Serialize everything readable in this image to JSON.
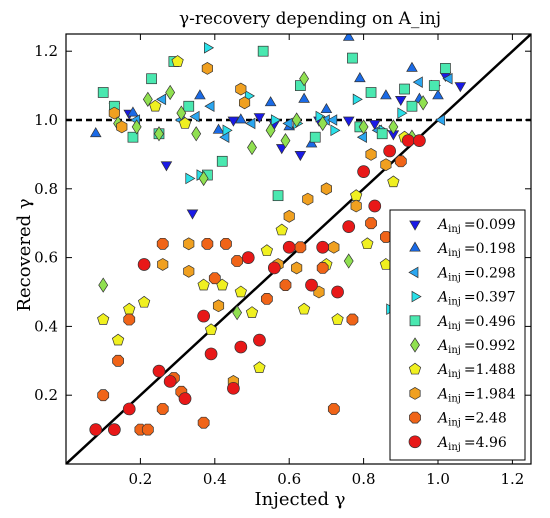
{
  "chart_data": {
    "type": "scatter",
    "title": "γ-recovery depending on A_inj",
    "xlabel": "Injected γ",
    "ylabel": "Recovered γ",
    "xlim": [
      0.0,
      1.25
    ],
    "ylim": [
      0.0,
      1.25
    ],
    "xticks": [
      "0.2",
      "0.4",
      "0.6",
      "0.8",
      "1.0",
      "1.2"
    ],
    "yticks": [
      "0.2",
      "0.4",
      "0.6",
      "0.8",
      "1.0",
      "1.2"
    ],
    "x_tick_values": [
      0.2,
      0.4,
      0.6,
      0.8,
      1.0,
      1.2
    ],
    "y_tick_values": [
      0.2,
      0.4,
      0.6,
      0.8,
      1.0,
      1.2
    ],
    "grid": false,
    "legend": "lower-right",
    "reference_lines": [
      {
        "type": "diagonal",
        "style": "solid",
        "from": [
          0.0,
          0.0
        ],
        "to": [
          1.25,
          1.25
        ]
      },
      {
        "type": "horizontal",
        "style": "dashed",
        "y": 1.0
      }
    ],
    "series": [
      {
        "name": "A_inj = 0.099",
        "label_value": "=0.099",
        "marker": "triangle-down",
        "color": "#1a1ae6",
        "points": [
          [
            0.13,
            1.04
          ],
          [
            0.17,
            1.02
          ],
          [
            0.27,
            0.87
          ],
          [
            0.34,
            0.73
          ],
          [
            0.45,
            1.0
          ],
          [
            0.52,
            1.01
          ],
          [
            0.56,
            0.99
          ],
          [
            0.58,
            0.92
          ],
          [
            0.63,
            0.9
          ],
          [
            0.68,
            1.0
          ],
          [
            0.76,
            1.0
          ],
          [
            0.83,
            0.99
          ],
          [
            0.88,
            0.96
          ],
          [
            1.02,
            1.13
          ],
          [
            1.06,
            1.1
          ],
          [
            0.9,
            1.06
          ]
        ]
      },
      {
        "name": "A_inj = 0.198",
        "label_value": "=0.198",
        "marker": "triangle-up",
        "color": "#1a6ae6",
        "points": [
          [
            0.08,
            0.96
          ],
          [
            0.18,
            1.02
          ],
          [
            0.36,
            1.07
          ],
          [
            0.41,
            0.97
          ],
          [
            0.47,
            1.0
          ],
          [
            0.55,
            1.05
          ],
          [
            0.6,
            0.98
          ],
          [
            0.64,
            1.06
          ],
          [
            0.66,
            0.93
          ],
          [
            0.7,
            1.03
          ],
          [
            0.76,
            1.24
          ],
          [
            0.79,
            1.12
          ],
          [
            0.86,
            1.07
          ],
          [
            0.93,
            1.15
          ],
          [
            0.95,
            1.06
          ],
          [
            1.0,
            1.07
          ]
        ]
      },
      {
        "name": "A_inj = 0.298",
        "label_value": "=0.298",
        "marker": "triangle-left",
        "color": "#2aa6f0",
        "points": [
          [
            0.19,
            1.0
          ],
          [
            0.26,
            1.06
          ],
          [
            0.31,
            1.0
          ],
          [
            0.35,
            1.01
          ],
          [
            0.39,
            1.04
          ],
          [
            0.43,
            0.95
          ],
          [
            0.5,
            0.99
          ],
          [
            0.6,
            0.99
          ],
          [
            0.7,
            1.0
          ],
          [
            0.72,
            1.0
          ],
          [
            0.8,
            0.95
          ],
          [
            0.84,
            0.97
          ],
          [
            0.95,
            1.11
          ],
          [
            1.01,
            1.0
          ],
          [
            1.03,
            1.12
          ]
        ]
      },
      {
        "name": "A_inj = 0.397",
        "label_value": "=0.397",
        "marker": "triangle-right",
        "color": "#2ae0e8",
        "points": [
          [
            0.33,
            0.83
          ],
          [
            0.36,
            0.84
          ],
          [
            0.38,
            1.21
          ],
          [
            0.43,
            0.97
          ],
          [
            0.49,
            1.07
          ],
          [
            0.56,
            1.0
          ],
          [
            0.62,
            0.99
          ],
          [
            0.68,
            1.01
          ],
          [
            0.72,
            0.97
          ],
          [
            0.78,
            1.06
          ],
          [
            0.85,
            0.97
          ],
          [
            0.87,
            0.45
          ],
          [
            0.9,
            1.02
          ],
          [
            0.99,
            1.1
          ]
        ]
      },
      {
        "name": "A_inj = 0.496",
        "label_value": "=0.496",
        "marker": "square",
        "color": "#4ae8b0",
        "points": [
          [
            0.1,
            1.08
          ],
          [
            0.13,
            1.04
          ],
          [
            0.18,
            0.95
          ],
          [
            0.23,
            1.12
          ],
          [
            0.25,
            0.96
          ],
          [
            0.29,
            1.17
          ],
          [
            0.33,
            1.04
          ],
          [
            0.38,
            0.84
          ],
          [
            0.42,
            0.88
          ],
          [
            0.53,
            1.2
          ],
          [
            0.57,
            0.78
          ],
          [
            0.63,
            1.1
          ],
          [
            0.67,
            0.95
          ],
          [
            0.77,
            1.18
          ],
          [
            0.79,
            0.98
          ],
          [
            0.82,
            1.08
          ],
          [
            0.85,
            0.96
          ],
          [
            0.91,
            1.09
          ],
          [
            0.93,
            1.04
          ],
          [
            0.99,
            1.1
          ],
          [
            1.02,
            1.15
          ]
        ]
      },
      {
        "name": "A_inj = 0.992",
        "label_value": "=0.992",
        "marker": "diamond",
        "color": "#90e050",
        "points": [
          [
            0.1,
            0.52
          ],
          [
            0.14,
            0.99
          ],
          [
            0.19,
            0.98
          ],
          [
            0.22,
            1.06
          ],
          [
            0.25,
            0.96
          ],
          [
            0.28,
            1.08
          ],
          [
            0.31,
            1.02
          ],
          [
            0.35,
            0.96
          ],
          [
            0.37,
            0.83
          ],
          [
            0.46,
            0.44
          ],
          [
            0.5,
            0.92
          ],
          [
            0.55,
            0.97
          ],
          [
            0.59,
            0.94
          ],
          [
            0.62,
            1.0
          ],
          [
            0.64,
            1.12
          ],
          [
            0.69,
            0.99
          ],
          [
            0.76,
            0.59
          ],
          [
            0.8,
            0.98
          ],
          [
            0.88,
            0.98
          ],
          [
            0.93,
            0.95
          ],
          [
            0.96,
            1.05
          ]
        ]
      },
      {
        "name": "A_inj = 1.488",
        "label_value": "=1.488",
        "marker": "pentagon",
        "color": "#f0f020",
        "points": [
          [
            0.1,
            0.42
          ],
          [
            0.14,
            0.36
          ],
          [
            0.17,
            0.45
          ],
          [
            0.21,
            0.47
          ],
          [
            0.24,
            1.04
          ],
          [
            0.3,
            1.17
          ],
          [
            0.32,
            0.99
          ],
          [
            0.37,
            0.52
          ],
          [
            0.39,
            0.39
          ],
          [
            0.42,
            0.52
          ],
          [
            0.47,
            0.5
          ],
          [
            0.5,
            0.44
          ],
          [
            0.52,
            0.28
          ],
          [
            0.54,
            0.62
          ],
          [
            0.58,
            0.68
          ],
          [
            0.64,
            0.45
          ],
          [
            0.7,
            0.58
          ],
          [
            0.73,
            0.42
          ],
          [
            0.78,
            0.78
          ],
          [
            0.81,
            0.64
          ],
          [
            0.86,
            0.58
          ],
          [
            0.88,
            0.82
          ],
          [
            0.91,
            0.95
          ]
        ]
      },
      {
        "name": "A_inj = 1.984",
        "label_value": "=1.984",
        "marker": "hexagon",
        "color": "#f0a020",
        "points": [
          [
            0.13,
            1.02
          ],
          [
            0.15,
            0.98
          ],
          [
            0.26,
            0.58
          ],
          [
            0.33,
            0.56
          ],
          [
            0.33,
            0.64
          ],
          [
            0.38,
            1.15
          ],
          [
            0.41,
            0.46
          ],
          [
            0.45,
            0.24
          ],
          [
            0.47,
            1.09
          ],
          [
            0.48,
            1.05
          ],
          [
            0.57,
            0.58
          ],
          [
            0.6,
            0.72
          ],
          [
            0.62,
            0.57
          ],
          [
            0.65,
            0.77
          ],
          [
            0.68,
            0.5
          ],
          [
            0.7,
            0.8
          ],
          [
            0.72,
            0.63
          ],
          [
            0.78,
            0.75
          ],
          [
            0.82,
            0.9
          ],
          [
            0.86,
            0.87
          ]
        ]
      },
      {
        "name": "A_inj = 2.48",
        "label_value": "=2.48",
        "marker": "octagon",
        "color": "#f06418",
        "points": [
          [
            0.1,
            0.2
          ],
          [
            0.14,
            0.3
          ],
          [
            0.17,
            0.42
          ],
          [
            0.2,
            0.1
          ],
          [
            0.22,
            0.1
          ],
          [
            0.26,
            0.64
          ],
          [
            0.26,
            0.16
          ],
          [
            0.29,
            0.25
          ],
          [
            0.31,
            0.21
          ],
          [
            0.37,
            0.12
          ],
          [
            0.38,
            0.64
          ],
          [
            0.4,
            0.54
          ],
          [
            0.43,
            0.64
          ],
          [
            0.46,
            0.59
          ],
          [
            0.54,
            0.48
          ],
          [
            0.59,
            0.52
          ],
          [
            0.63,
            0.63
          ],
          [
            0.66,
            0.52
          ],
          [
            0.69,
            0.57
          ],
          [
            0.72,
            0.16
          ],
          [
            0.77,
            0.42
          ],
          [
            0.82,
            0.7
          ],
          [
            0.86,
            0.66
          ],
          [
            0.9,
            0.88
          ]
        ]
      },
      {
        "name": "A_inj = 4.96",
        "label_value": "=4.96",
        "marker": "circle",
        "color": "#e81818",
        "points": [
          [
            0.08,
            0.1
          ],
          [
            0.13,
            0.1
          ],
          [
            0.17,
            0.16
          ],
          [
            0.21,
            0.58
          ],
          [
            0.25,
            0.27
          ],
          [
            0.28,
            0.24
          ],
          [
            0.32,
            0.19
          ],
          [
            0.37,
            0.43
          ],
          [
            0.39,
            0.32
          ],
          [
            0.45,
            0.22
          ],
          [
            0.47,
            0.34
          ],
          [
            0.49,
            0.6
          ],
          [
            0.52,
            0.36
          ],
          [
            0.56,
            0.57
          ],
          [
            0.6,
            0.63
          ],
          [
            0.66,
            0.52
          ],
          [
            0.69,
            0.63
          ],
          [
            0.73,
            0.5
          ],
          [
            0.76,
            0.69
          ],
          [
            0.8,
            0.85
          ],
          [
            0.83,
            0.75
          ],
          [
            0.87,
            0.91
          ],
          [
            0.92,
            0.94
          ],
          [
            0.95,
            0.94
          ]
        ]
      }
    ]
  }
}
